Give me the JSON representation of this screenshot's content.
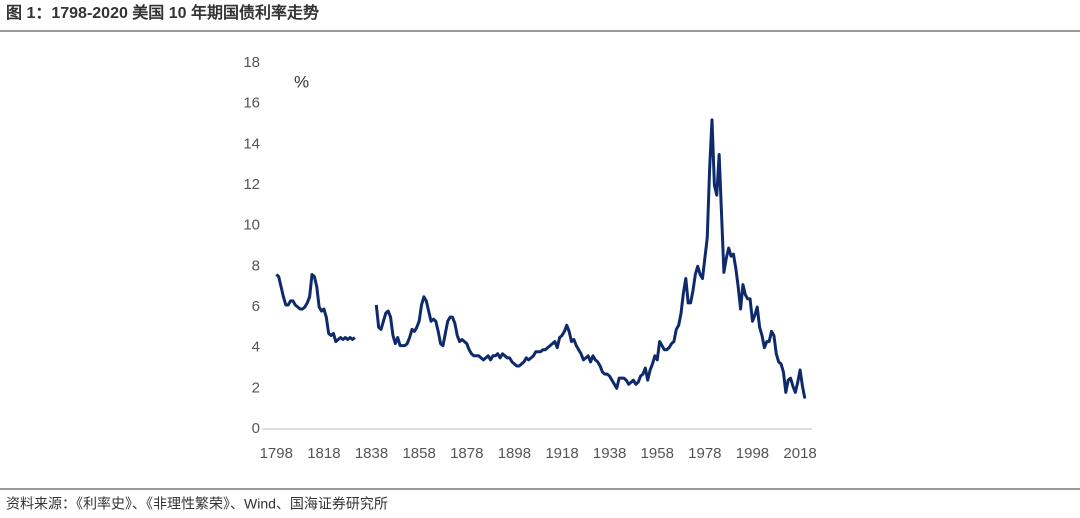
{
  "chart_data": {
    "type": "line",
    "title": "图 1：1798-2020 美国 10 年期国债利率走势",
    "y_unit": "%",
    "source": "资料来源：《利率史》、《非理性繁荣》、Wind、国海证券研究所",
    "xlim": [
      1792,
      2023
    ],
    "xticks": [
      1798,
      1818,
      1838,
      1858,
      1878,
      1898,
      1918,
      1938,
      1958,
      1978,
      1998,
      2018
    ],
    "ylim": [
      0,
      18
    ],
    "yticks": [
      0,
      2,
      4,
      6,
      8,
      10,
      12,
      14,
      16,
      18
    ],
    "grid": false,
    "x": [
      1798,
      1799,
      1800,
      1801,
      1802,
      1803,
      1804,
      1805,
      1806,
      1807,
      1808,
      1809,
      1810,
      1811,
      1812,
      1813,
      1814,
      1815,
      1816,
      1817,
      1818,
      1819,
      1820,
      1821,
      1822,
      1823,
      1824,
      1825,
      1826,
      1827,
      1828,
      1829,
      1830,
      1831,
      1832,
      1833,
      1834,
      1835,
      1836,
      1837,
      1838,
      1839,
      1840,
      1841,
      1842,
      1843,
      1844,
      1845,
      1846,
      1847,
      1848,
      1849,
      1850,
      1851,
      1852,
      1853,
      1854,
      1855,
      1856,
      1857,
      1858,
      1859,
      1860,
      1861,
      1862,
      1863,
      1864,
      1865,
      1866,
      1867,
      1868,
      1869,
      1870,
      1871,
      1872,
      1873,
      1874,
      1875,
      1876,
      1877,
      1878,
      1879,
      1880,
      1881,
      1882,
      1883,
      1884,
      1885,
      1886,
      1887,
      1888,
      1889,
      1890,
      1891,
      1892,
      1893,
      1894,
      1895,
      1896,
      1897,
      1898,
      1899,
      1900,
      1901,
      1902,
      1903,
      1904,
      1905,
      1906,
      1907,
      1908,
      1909,
      1910,
      1911,
      1912,
      1913,
      1914,
      1915,
      1916,
      1917,
      1918,
      1919,
      1920,
      1921,
      1922,
      1923,
      1924,
      1925,
      1926,
      1927,
      1928,
      1929,
      1930,
      1931,
      1932,
      1933,
      1934,
      1935,
      1936,
      1937,
      1938,
      1939,
      1940,
      1941,
      1942,
      1943,
      1944,
      1945,
      1946,
      1947,
      1948,
      1949,
      1950,
      1951,
      1952,
      1953,
      1954,
      1955,
      1956,
      1957,
      1958,
      1959,
      1960,
      1961,
      1962,
      1963,
      1964,
      1965,
      1966,
      1967,
      1968,
      1969,
      1970,
      1971,
      1972,
      1973,
      1974,
      1975,
      1976,
      1977,
      1978,
      1979,
      1980,
      1981,
      1982,
      1983,
      1984,
      1985,
      1986,
      1987,
      1988,
      1989,
      1990,
      1991,
      1992,
      1993,
      1994,
      1995,
      1996,
      1997,
      1998,
      1999,
      2000,
      2001,
      2002,
      2003,
      2004,
      2005,
      2006,
      2007,
      2008,
      2009,
      2010,
      2011,
      2012,
      2013,
      2014,
      2015,
      2016,
      2017,
      2018,
      2019,
      2020
    ],
    "series": [
      {
        "color": "#0f2a6b",
        "values": [
          7.6,
          7.5,
          7.0,
          6.5,
          6.1,
          6.1,
          6.3,
          6.3,
          6.1,
          6.0,
          5.9,
          5.9,
          6.0,
          6.2,
          6.5,
          7.6,
          7.5,
          7.0,
          6.0,
          5.8,
          5.9,
          5.5,
          4.7,
          4.6,
          4.7,
          4.3,
          4.4,
          4.5,
          4.4,
          4.5,
          4.4,
          4.5,
          4.4,
          4.5,
          null,
          null,
          null,
          null,
          null,
          null,
          null,
          null,
          6.1,
          5.0,
          4.9,
          5.3,
          5.7,
          5.8,
          5.5,
          4.6,
          4.2,
          4.5,
          4.1,
          4.1,
          4.1,
          4.2,
          4.5,
          4.9,
          4.8,
          5.0,
          5.3,
          6.1,
          6.5,
          6.3,
          5.8,
          5.3,
          5.4,
          5.3,
          4.8,
          4.2,
          4.1,
          4.7,
          5.3,
          5.5,
          5.5,
          5.2,
          4.6,
          4.3,
          4.4,
          4.3,
          4.2,
          3.9,
          3.7,
          3.6,
          3.6,
          3.6,
          3.5,
          3.4,
          3.5,
          3.6,
          3.4,
          3.6,
          3.6,
          3.7,
          3.5,
          3.7,
          3.6,
          3.5,
          3.5,
          3.3,
          3.2,
          3.1,
          3.1,
          3.2,
          3.3,
          3.5,
          3.4,
          3.5,
          3.6,
          3.8,
          3.8,
          3.8,
          3.9,
          3.9,
          4.0,
          4.1,
          4.2,
          4.3,
          4.0,
          4.5,
          4.6,
          4.8,
          5.1,
          4.8,
          4.3,
          4.4,
          4.1,
          3.9,
          3.7,
          3.4,
          3.5,
          3.6,
          3.3,
          3.6,
          3.4,
          3.3,
          3.1,
          2.8,
          2.7,
          2.7,
          2.6,
          2.4,
          2.2,
          2.0,
          2.5,
          2.5,
          2.5,
          2.4,
          2.2,
          2.3,
          2.4,
          2.2,
          2.3,
          2.6,
          2.7,
          3.0,
          2.4,
          2.9,
          3.2,
          3.6,
          3.4,
          4.3,
          4.1,
          3.9,
          3.9,
          4.0,
          4.2,
          4.3,
          4.9,
          5.1,
          5.7,
          6.7,
          7.4,
          6.2,
          6.2,
          6.8,
          7.6,
          8.0,
          7.6,
          7.4,
          8.4,
          9.4,
          12.8,
          15.2,
          12.0,
          11.5,
          13.5,
          10.6,
          7.7,
          8.4,
          8.9,
          8.5,
          8.6,
          7.9,
          7.0,
          5.9,
          7.1,
          6.6,
          6.4,
          6.4,
          5.3,
          5.6,
          6.0,
          5.0,
          4.6,
          4.0,
          4.3,
          4.3,
          4.8,
          4.6,
          3.7,
          3.3,
          3.2,
          2.8,
          1.8,
          2.4,
          2.5,
          2.1,
          1.8,
          2.3,
          2.9,
          2.1,
          1.5
        ]
      }
    ]
  }
}
